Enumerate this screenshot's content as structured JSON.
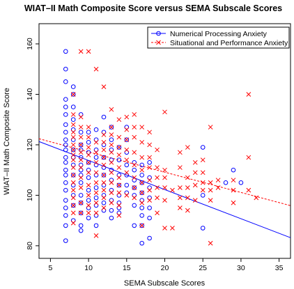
{
  "chart_data": {
    "type": "scatter",
    "title": "WIAT–II Math Composite Score versus SEMA Subscale Scores",
    "xlabel": "SEMA Subscale Scores",
    "ylabel": "WIAT–II Math Composite Score",
    "xlim": [
      3.5,
      36.5
    ],
    "ylim": [
      75,
      168
    ],
    "xticks": [
      5,
      10,
      15,
      20,
      25,
      30,
      35
    ],
    "yticks": [
      80,
      100,
      120,
      140,
      160
    ],
    "xtick_labels": [
      "5",
      "10",
      "15",
      "20",
      "25",
      "30",
      "35"
    ],
    "ytick_labels": [
      "80",
      "100",
      "120",
      "140",
      "160"
    ],
    "grid": false,
    "legend_position": "top-right",
    "series": [
      {
        "name": "Numerical Processing Anxiety",
        "marker": "circle",
        "color": "#0000ff",
        "points": [
          [
            7,
            157
          ],
          [
            7,
            150
          ],
          [
            7,
            145
          ],
          [
            7,
            138
          ],
          [
            7,
            135
          ],
          [
            7,
            132
          ],
          [
            7,
            128
          ],
          [
            7,
            125
          ],
          [
            7,
            122
          ],
          [
            7,
            120
          ],
          [
            7,
            118
          ],
          [
            7,
            115
          ],
          [
            7,
            113
          ],
          [
            7,
            110
          ],
          [
            7,
            108
          ],
          [
            7,
            105
          ],
          [
            7,
            102
          ],
          [
            7,
            98
          ],
          [
            7,
            95
          ],
          [
            7,
            92
          ],
          [
            7,
            88
          ],
          [
            7,
            82
          ],
          [
            8,
            143
          ],
          [
            8,
            140
          ],
          [
            8,
            135
          ],
          [
            8,
            130
          ],
          [
            8,
            126
          ],
          [
            8,
            122
          ],
          [
            8,
            118
          ],
          [
            8,
            115
          ],
          [
            8,
            112
          ],
          [
            8,
            108
          ],
          [
            8,
            104
          ],
          [
            8,
            100
          ],
          [
            8,
            96
          ],
          [
            8,
            90
          ],
          [
            9,
            132
          ],
          [
            9,
            125
          ],
          [
            9,
            120
          ],
          [
            9,
            118
          ],
          [
            9,
            115
          ],
          [
            9,
            112
          ],
          [
            9,
            110
          ],
          [
            9,
            108
          ],
          [
            9,
            105
          ],
          [
            9,
            100
          ],
          [
            9,
            97
          ],
          [
            9,
            93
          ],
          [
            9,
            88
          ],
          [
            9,
            86
          ],
          [
            10,
            125
          ],
          [
            10,
            121
          ],
          [
            10,
            117
          ],
          [
            10,
            113
          ],
          [
            10,
            110
          ],
          [
            10,
            107
          ],
          [
            10,
            102
          ],
          [
            10,
            98
          ],
          [
            10,
            95
          ],
          [
            10,
            91
          ],
          [
            11,
            126
          ],
          [
            11,
            122
          ],
          [
            11,
            118
          ],
          [
            11,
            115
          ],
          [
            11,
            112
          ],
          [
            11,
            108
          ],
          [
            11,
            103
          ],
          [
            11,
            99
          ],
          [
            11,
            96
          ],
          [
            11,
            92
          ],
          [
            11,
            88
          ],
          [
            12,
            131
          ],
          [
            12,
            125
          ],
          [
            12,
            120
          ],
          [
            12,
            115
          ],
          [
            12,
            111
          ],
          [
            12,
            108
          ],
          [
            12,
            104
          ],
          [
            12,
            100
          ],
          [
            12,
            97
          ],
          [
            12,
            94
          ],
          [
            13,
            127
          ],
          [
            13,
            122
          ],
          [
            13,
            118
          ],
          [
            13,
            114
          ],
          [
            13,
            110
          ],
          [
            13,
            106
          ],
          [
            13,
            102
          ],
          [
            13,
            98
          ],
          [
            13,
            94
          ],
          [
            13,
            91
          ],
          [
            14,
            119
          ],
          [
            14,
            114
          ],
          [
            14,
            108
          ],
          [
            14,
            104
          ],
          [
            14,
            100
          ],
          [
            14,
            97
          ],
          [
            14,
            95
          ],
          [
            14,
            93
          ],
          [
            15,
            127
          ],
          [
            15,
            122
          ],
          [
            15,
            117
          ],
          [
            15,
            112
          ],
          [
            15,
            108
          ],
          [
            15,
            104
          ],
          [
            15,
            101
          ],
          [
            16,
            113
          ],
          [
            16,
            110
          ],
          [
            16,
            106
          ],
          [
            16,
            103
          ],
          [
            16,
            100
          ],
          [
            16,
            96
          ],
          [
            16,
            88
          ],
          [
            17,
            112
          ],
          [
            17,
            108
          ],
          [
            17,
            105
          ],
          [
            17,
            101
          ],
          [
            17,
            98
          ],
          [
            17,
            95
          ],
          [
            17,
            92
          ],
          [
            17,
            88
          ],
          [
            17,
            81
          ],
          [
            18,
            113
          ],
          [
            18,
            107
          ],
          [
            18,
            103
          ],
          [
            18,
            99
          ],
          [
            18,
            95
          ],
          [
            18,
            91
          ],
          [
            18,
            83
          ],
          [
            25,
            119
          ],
          [
            25,
            100
          ],
          [
            25,
            87
          ],
          [
            28,
            105
          ],
          [
            29,
            110
          ],
          [
            30,
            105
          ]
        ]
      },
      {
        "name": "Situational and Performance Anxiety",
        "marker": "x",
        "color": "#ff0000",
        "points": [
          [
            8,
            140
          ],
          [
            8,
            132
          ],
          [
            8,
            128
          ],
          [
            8,
            125
          ],
          [
            8,
            123
          ],
          [
            8,
            120
          ],
          [
            8,
            118
          ],
          [
            8,
            116
          ],
          [
            8,
            114
          ],
          [
            8,
            111
          ],
          [
            8,
            108
          ],
          [
            8,
            105
          ],
          [
            8,
            102
          ],
          [
            8,
            99
          ],
          [
            8,
            96
          ],
          [
            8,
            93
          ],
          [
            8,
            89
          ],
          [
            9,
            157
          ],
          [
            9,
            131
          ],
          [
            9,
            127
          ],
          [
            9,
            123
          ],
          [
            9,
            120
          ],
          [
            9,
            117
          ],
          [
            9,
            114
          ],
          [
            9,
            111
          ],
          [
            9,
            107
          ],
          [
            9,
            103
          ],
          [
            9,
            97
          ],
          [
            9,
            93
          ],
          [
            10,
            157
          ],
          [
            10,
            127
          ],
          [
            10,
            123
          ],
          [
            10,
            119
          ],
          [
            10,
            116
          ],
          [
            10,
            113
          ],
          [
            10,
            109
          ],
          [
            10,
            104
          ],
          [
            10,
            100
          ],
          [
            10,
            96
          ],
          [
            10,
            93
          ],
          [
            11,
            150
          ],
          [
            11,
            121
          ],
          [
            11,
            117
          ],
          [
            11,
            113
          ],
          [
            11,
            109
          ],
          [
            11,
            105
          ],
          [
            11,
            101
          ],
          [
            11,
            97
          ],
          [
            11,
            93
          ],
          [
            11,
            84
          ],
          [
            12,
            143
          ],
          [
            12,
            124
          ],
          [
            12,
            121
          ],
          [
            12,
            118
          ],
          [
            12,
            115
          ],
          [
            12,
            112
          ],
          [
            12,
            108
          ],
          [
            12,
            105
          ],
          [
            12,
            102
          ],
          [
            12,
            99
          ],
          [
            12,
            95
          ],
          [
            13,
            134
          ],
          [
            13,
            127
          ],
          [
            13,
            124
          ],
          [
            13,
            120
          ],
          [
            13,
            117
          ],
          [
            13,
            113
          ],
          [
            13,
            109
          ],
          [
            13,
            105
          ],
          [
            13,
            101
          ],
          [
            13,
            97
          ],
          [
            14,
            130
          ],
          [
            14,
            123
          ],
          [
            14,
            119
          ],
          [
            14,
            116
          ],
          [
            14,
            111
          ],
          [
            14,
            107
          ],
          [
            14,
            104
          ],
          [
            14,
            101
          ],
          [
            14,
            96
          ],
          [
            14,
            92
          ],
          [
            15,
            131
          ],
          [
            15,
            126
          ],
          [
            15,
            122
          ],
          [
            15,
            118
          ],
          [
            15,
            114
          ],
          [
            15,
            109
          ],
          [
            15,
            100
          ],
          [
            16,
            132
          ],
          [
            16,
            127
          ],
          [
            16,
            123
          ],
          [
            16,
            117
          ],
          [
            16,
            112
          ],
          [
            16,
            107
          ],
          [
            16,
            103
          ],
          [
            16,
            99
          ],
          [
            17,
            127
          ],
          [
            17,
            121
          ],
          [
            17,
            115
          ],
          [
            17,
            110
          ],
          [
            17,
            105
          ],
          [
            17,
            101
          ],
          [
            17,
            97
          ],
          [
            17,
            88
          ],
          [
            18,
            125
          ],
          [
            18,
            120
          ],
          [
            18,
            115
          ],
          [
            18,
            111
          ],
          [
            18,
            106
          ],
          [
            18,
            102
          ],
          [
            18,
            98
          ],
          [
            19,
            118
          ],
          [
            19,
            111
          ],
          [
            19,
            107
          ],
          [
            19,
            103
          ],
          [
            19,
            99
          ],
          [
            19,
            93
          ],
          [
            20,
            133
          ],
          [
            20,
            110
          ],
          [
            20,
            107
          ],
          [
            20,
            103
          ],
          [
            20,
            98
          ],
          [
            20,
            87
          ],
          [
            21,
            102
          ],
          [
            21,
            87
          ],
          [
            22,
            117
          ],
          [
            22,
            111
          ],
          [
            22,
            103
          ],
          [
            22,
            99
          ],
          [
            22,
            95
          ],
          [
            23,
            119
          ],
          [
            23,
            107
          ],
          [
            23,
            103
          ],
          [
            23,
            99
          ],
          [
            23,
            94
          ],
          [
            24,
            113
          ],
          [
            24,
            109
          ],
          [
            24,
            104
          ],
          [
            24,
            98
          ],
          [
            25,
            114
          ],
          [
            25,
            109
          ],
          [
            25,
            105
          ],
          [
            25,
            102
          ],
          [
            26,
            127
          ],
          [
            26,
            105
          ],
          [
            26,
            102
          ],
          [
            26,
            98
          ],
          [
            26,
            81
          ],
          [
            27,
            106
          ],
          [
            27,
            103
          ],
          [
            29,
            106
          ],
          [
            29,
            102
          ],
          [
            29,
            97
          ],
          [
            31,
            140
          ],
          [
            31,
            115
          ],
          [
            31,
            102
          ],
          [
            32,
            99
          ]
        ]
      }
    ],
    "trend_lines": [
      {
        "series": "Numerical Processing Anxiety",
        "style": "solid",
        "color": "#0000ff",
        "x": [
          3.5,
          36.5
        ],
        "y": [
          121.3,
          83.2
        ]
      },
      {
        "series": "Situational and Performance Anxiety",
        "style": "dashed",
        "color": "#ff0000",
        "x": [
          3.5,
          36.5
        ],
        "y": [
          122.4,
          95.9
        ]
      }
    ]
  }
}
